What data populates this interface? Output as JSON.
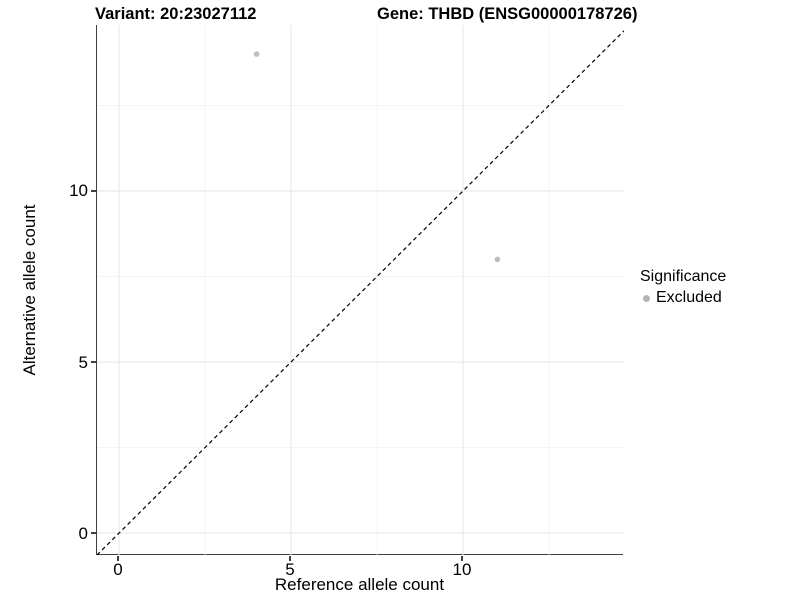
{
  "titles": {
    "variant": "Variant: 20:23027112",
    "gene": "Gene: THBD (ENSG00000178726)"
  },
  "legend": {
    "title": "Significance",
    "items": [
      {
        "label": "Excluded",
        "color": "#b5b5b5"
      }
    ]
  },
  "chart_data": {
    "type": "scatter",
    "title": "Variant: 20:23027112 / Gene: THBD (ENSG00000178726)",
    "xlabel": "Reference allele count",
    "ylabel": "Alternative allele count",
    "series": [
      {
        "name": "Excluded",
        "points": [
          {
            "x": 4,
            "y": 14
          },
          {
            "x": 11,
            "y": 8
          }
        ]
      }
    ],
    "xlim": [
      -0.64,
      14.68
    ],
    "ylim": [
      -0.64,
      14.85
    ],
    "x_ticks": [
      0,
      5,
      10
    ],
    "y_ticks": [
      0,
      5,
      10
    ],
    "x_minor_gridlines": [
      2.5,
      7.5,
      12.5
    ],
    "y_minor_gridlines": [
      2.5,
      7.5,
      12.5
    ],
    "identity_line": {
      "type": "dashed",
      "equation": "y = x",
      "color": "#000000"
    },
    "point_color": "#bdbdbd",
    "point_radius": 2.8,
    "grid_major_color": "#e8e8e8",
    "grid_minor_color": "#f2f2f2",
    "grid": true,
    "legend_position": "right"
  }
}
